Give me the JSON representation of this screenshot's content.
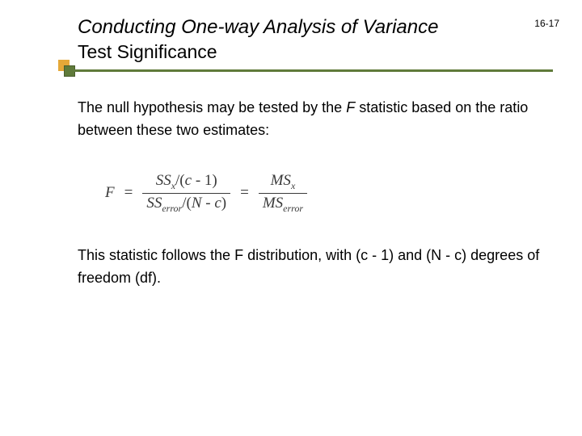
{
  "header": {
    "title_main": "Conducting One-way Analysis of Variance",
    "title_sub": "Test Significance",
    "page_number": "16-17"
  },
  "body": {
    "p1a": "The null hypothesis may be tested by the ",
    "p1_stat": "F",
    "p1b": " statistic based on the ratio between these two estimates:",
    "p2a": "This statistic follows the ",
    "p2_stat": "F",
    "p2b": " distribution, with (",
    "p2_c1": "c",
    "p2c": " - 1) and (",
    "p2_n": "N",
    "p2d": " - ",
    "p2_c2": "c",
    "p2e": ") degrees of freedom (df)."
  },
  "formula": {
    "lhs": "F",
    "eq": "=",
    "frac1_num_a": "SS",
    "frac1_num_sub": "x",
    "frac1_num_b": "/(",
    "frac1_num_c": "c",
    "frac1_num_d": " - 1)",
    "frac1_den_a": "SS",
    "frac1_den_sub": "error",
    "frac1_den_b": "/(",
    "frac1_den_c": "N",
    "frac1_den_d": " - ",
    "frac1_den_e": "c",
    "frac1_den_f": ")",
    "frac2_num_a": "MS",
    "frac2_num_sub": "x",
    "frac2_den_a": "MS",
    "frac2_den_sub": "error"
  },
  "style": {
    "bullet_outer": "#e5a838",
    "bullet_inner": "#5f7a3a",
    "underline_color": "#5f7a3a",
    "background": "#ffffff",
    "text_color": "#000000",
    "formula_color": "#3a3a3a",
    "title_fontsize_pt": 24,
    "body_fontsize_pt": 18,
    "formula_fontsize_pt": 19,
    "pagenum_fontsize_pt": 12
  }
}
